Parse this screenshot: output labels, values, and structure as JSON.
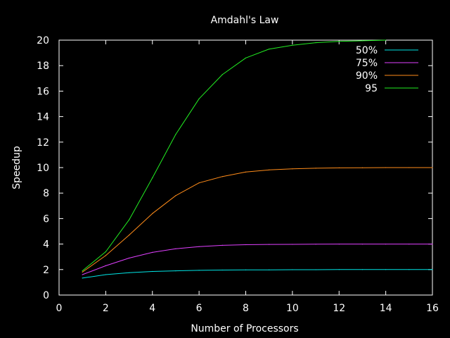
{
  "chart_data": {
    "type": "line",
    "title": "Amdahl's Law",
    "xlabel": "Number of Processors",
    "ylabel": "Speedup",
    "xlim": [
      0,
      16
    ],
    "ylim": [
      0,
      20
    ],
    "xticks": [
      0,
      2,
      4,
      6,
      8,
      10,
      12,
      14,
      16
    ],
    "yticks": [
      0,
      2,
      4,
      6,
      8,
      10,
      12,
      14,
      16,
      18,
      20
    ],
    "grid": false,
    "legend_position": "top-right",
    "background": "#000000",
    "axis_color": "#ffffff",
    "series": [
      {
        "name": "50%",
        "color": "#00e5e5",
        "x": [
          1,
          2,
          3,
          4,
          5,
          6,
          7,
          8,
          9,
          10,
          11,
          12,
          13,
          14,
          15,
          16
        ],
        "values": [
          1.33,
          1.6,
          1.75,
          1.85,
          1.9,
          1.94,
          1.96,
          1.97,
          1.98,
          1.99,
          1.99,
          2.0,
          2.0,
          2.0,
          2.0,
          2.0
        ]
      },
      {
        "name": "75%",
        "color": "#e040ff",
        "x": [
          1,
          2,
          3,
          4,
          5,
          6,
          7,
          8,
          9,
          10,
          11,
          12,
          13,
          14,
          15,
          16
        ],
        "values": [
          1.6,
          2.3,
          2.9,
          3.35,
          3.63,
          3.8,
          3.9,
          3.95,
          3.97,
          3.98,
          3.99,
          4.0,
          4.0,
          4.0,
          4.0,
          4.0
        ]
      },
      {
        "name": "90%",
        "color": "#ff8c1a",
        "x": [
          1,
          2,
          3,
          4,
          5,
          6,
          7,
          8,
          9,
          10,
          11,
          12,
          13,
          14,
          15,
          16
        ],
        "values": [
          1.8,
          3.1,
          4.7,
          6.4,
          7.8,
          8.8,
          9.3,
          9.65,
          9.82,
          9.9,
          9.95,
          9.98,
          9.99,
          10.0,
          10.0,
          10.0
        ]
      },
      {
        "name": "95",
        "color": "#22ee22",
        "x": [
          1,
          2,
          3,
          4,
          5,
          6,
          7,
          8,
          9,
          10,
          11,
          12,
          13,
          14
        ],
        "values": [
          1.9,
          3.4,
          5.9,
          9.2,
          12.6,
          15.4,
          17.3,
          18.6,
          19.3,
          19.6,
          19.8,
          19.9,
          19.95,
          20.0
        ]
      }
    ]
  }
}
